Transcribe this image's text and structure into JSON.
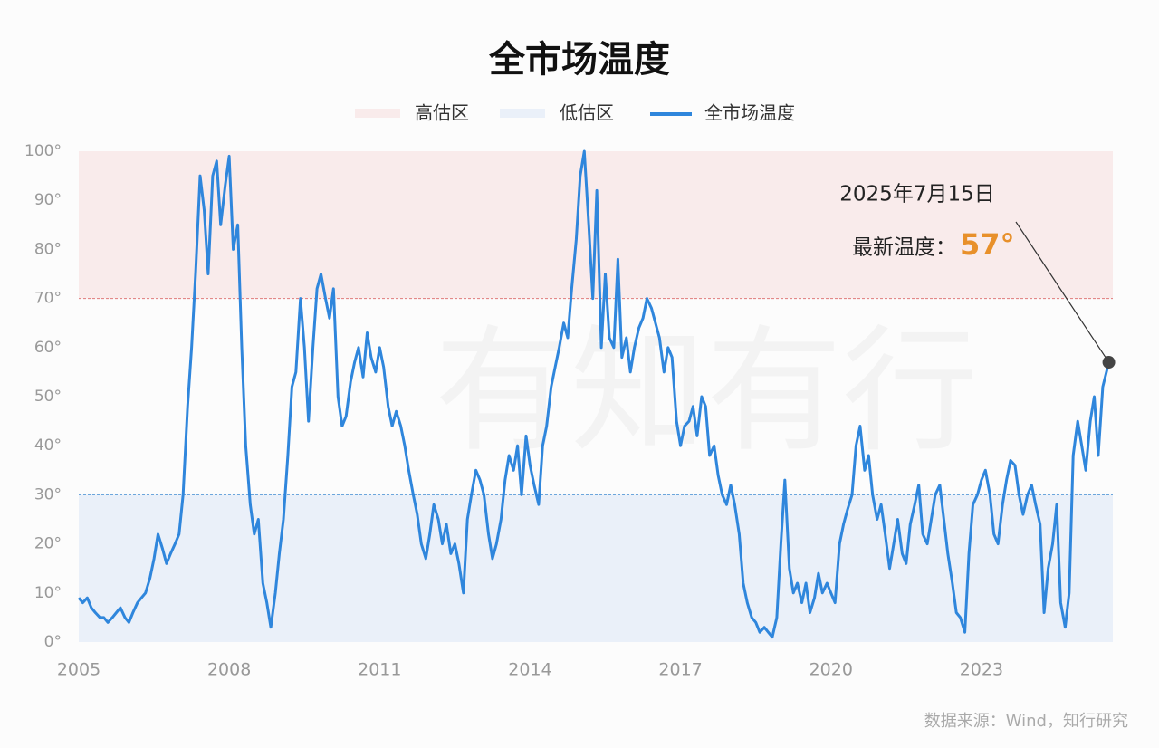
{
  "chart_data": {
    "type": "line",
    "title": "全市场温度",
    "watermark": "有知有行",
    "source": "数据来源：Wind，知行研究",
    "bands": [
      {
        "name": "高估区",
        "range": [
          70,
          100
        ],
        "color": "#f9ebeb",
        "line_color": "#e07a7a"
      },
      {
        "name": "低估区",
        "range": [
          0,
          30
        ],
        "color": "#eaf0f9",
        "line_color": "#5b9bd8"
      }
    ],
    "xlim": [
      2005,
      2025.62
    ],
    "xticks": [
      2005,
      2008,
      2011,
      2014,
      2017,
      2020,
      2023
    ],
    "ylim": [
      0,
      100
    ],
    "yticks": [
      {
        "value": 0,
        "label": "0°"
      },
      {
        "value": 10,
        "label": "10°"
      },
      {
        "value": 20,
        "label": "20°"
      },
      {
        "value": 30,
        "label": "30°"
      },
      {
        "value": 40,
        "label": "40°"
      },
      {
        "value": 50,
        "label": "50°"
      },
      {
        "value": 60,
        "label": "60°"
      },
      {
        "value": 70,
        "label": "70°"
      },
      {
        "value": 80,
        "label": "80°"
      },
      {
        "value": 90,
        "label": "90°"
      },
      {
        "value": 100,
        "label": "100°"
      }
    ],
    "grid": false,
    "annotation": {
      "text": "2025年7月15日",
      "label": "最新温度：",
      "value": 57,
      "value_label": "57°",
      "color": "#e8902a"
    },
    "x": [
      2005.0,
      2005.08,
      2005.17,
      2005.25,
      2005.33,
      2005.42,
      2005.5,
      2005.58,
      2005.67,
      2005.75,
      2005.83,
      2005.92,
      2006.0,
      2006.08,
      2006.17,
      2006.25,
      2006.33,
      2006.42,
      2006.5,
      2006.58,
      2006.67,
      2006.75,
      2006.83,
      2006.92,
      2007.0,
      2007.08,
      2007.17,
      2007.25,
      2007.33,
      2007.42,
      2007.5,
      2007.58,
      2007.67,
      2007.75,
      2007.83,
      2007.92,
      2008.0,
      2008.08,
      2008.17,
      2008.25,
      2008.33,
      2008.42,
      2008.5,
      2008.58,
      2008.67,
      2008.75,
      2008.83,
      2008.92,
      2009.0,
      2009.08,
      2009.17,
      2009.25,
      2009.33,
      2009.42,
      2009.5,
      2009.58,
      2009.67,
      2009.75,
      2009.83,
      2009.92,
      2010.0,
      2010.08,
      2010.17,
      2010.25,
      2010.33,
      2010.42,
      2010.5,
      2010.58,
      2010.67,
      2010.75,
      2010.83,
      2010.92,
      2011.0,
      2011.08,
      2011.17,
      2011.25,
      2011.33,
      2011.42,
      2011.5,
      2011.58,
      2011.67,
      2011.75,
      2011.83,
      2011.92,
      2012.0,
      2012.08,
      2012.17,
      2012.25,
      2012.33,
      2012.42,
      2012.5,
      2012.58,
      2012.67,
      2012.75,
      2012.83,
      2012.92,
      2013.0,
      2013.08,
      2013.17,
      2013.25,
      2013.33,
      2013.42,
      2013.5,
      2013.58,
      2013.67,
      2013.75,
      2013.83,
      2013.92,
      2014.0,
      2014.08,
      2014.17,
      2014.25,
      2014.33,
      2014.42,
      2014.5,
      2014.58,
      2014.67,
      2014.75,
      2014.83,
      2014.92,
      2015.0,
      2015.08,
      2015.17,
      2015.25,
      2015.33,
      2015.42,
      2015.5,
      2015.58,
      2015.67,
      2015.75,
      2015.83,
      2015.92,
      2016.0,
      2016.08,
      2016.17,
      2016.25,
      2016.33,
      2016.42,
      2016.5,
      2016.58,
      2016.67,
      2016.75,
      2016.83,
      2016.92,
      2017.0,
      2017.08,
      2017.17,
      2017.25,
      2017.33,
      2017.42,
      2017.5,
      2017.58,
      2017.67,
      2017.75,
      2017.83,
      2017.92,
      2018.0,
      2018.08,
      2018.17,
      2018.25,
      2018.33,
      2018.42,
      2018.5,
      2018.58,
      2018.67,
      2018.75,
      2018.83,
      2018.92,
      2019.0,
      2019.08,
      2019.17,
      2019.25,
      2019.33,
      2019.42,
      2019.5,
      2019.58,
      2019.67,
      2019.75,
      2019.83,
      2019.92,
      2020.0,
      2020.08,
      2020.17,
      2020.25,
      2020.33,
      2020.42,
      2020.5,
      2020.58,
      2020.67,
      2020.75,
      2020.83,
      2020.92,
      2021.0,
      2021.08,
      2021.17,
      2021.25,
      2021.33,
      2021.42,
      2021.5,
      2021.58,
      2021.67,
      2021.75,
      2021.83,
      2021.92,
      2022.0,
      2022.08,
      2022.17,
      2022.25,
      2022.33,
      2022.42,
      2022.5,
      2022.58,
      2022.67,
      2022.75,
      2022.83,
      2022.92,
      2023.0,
      2023.08,
      2023.17,
      2023.25,
      2023.33,
      2023.42,
      2023.5,
      2023.58,
      2023.67,
      2023.75,
      2023.83,
      2023.92,
      2024.0,
      2024.08,
      2024.17,
      2024.25,
      2024.33,
      2024.42,
      2024.5,
      2024.58,
      2024.67,
      2024.75,
      2024.83,
      2024.92,
      2025.0,
      2025.08,
      2025.17,
      2025.25,
      2025.33,
      2025.42,
      2025.54
    ],
    "series": [
      {
        "name": "全市场温度",
        "color": "#2f86dc",
        "values": [
          9,
          8,
          9,
          7,
          6,
          5,
          5,
          4,
          5,
          6,
          7,
          5,
          4,
          6,
          8,
          9,
          10,
          13,
          17,
          22,
          19,
          16,
          18,
          20,
          22,
          30,
          48,
          60,
          75,
          95,
          88,
          75,
          95,
          98,
          85,
          93,
          99,
          80,
          85,
          60,
          40,
          28,
          22,
          25,
          12,
          8,
          3,
          10,
          18,
          25,
          38,
          52,
          55,
          70,
          60,
          45,
          60,
          72,
          75,
          70,
          66,
          72,
          50,
          44,
          46,
          53,
          57,
          60,
          54,
          63,
          58,
          55,
          60,
          56,
          48,
          44,
          47,
          44,
          40,
          35,
          30,
          26,
          20,
          17,
          22,
          28,
          25,
          20,
          24,
          18,
          20,
          16,
          10,
          25,
          30,
          35,
          33,
          30,
          22,
          17,
          20,
          25,
          33,
          38,
          35,
          40,
          30,
          42,
          36,
          32,
          28,
          40,
          44,
          52,
          56,
          60,
          65,
          62,
          72,
          82,
          95,
          100,
          85,
          70,
          92,
          60,
          75,
          62,
          60,
          78,
          58,
          62,
          55,
          60,
          64,
          66,
          70,
          68,
          65,
          62,
          55,
          60,
          58,
          45,
          40,
          44,
          45,
          48,
          42,
          50,
          48,
          38,
          40,
          34,
          30,
          28,
          32,
          28,
          22,
          12,
          8,
          5,
          4,
          2,
          3,
          2,
          1,
          5,
          20,
          33,
          15,
          10,
          12,
          8,
          12,
          6,
          9,
          14,
          10,
          12,
          10,
          8,
          20,
          24,
          27,
          30,
          40,
          44,
          35,
          38,
          30,
          25,
          28,
          22,
          15,
          20,
          25,
          18,
          16,
          24,
          28,
          32,
          22,
          20,
          25,
          30,
          32,
          25,
          18,
          12,
          6,
          5,
          2,
          18,
          28,
          30,
          33,
          35,
          30,
          22,
          20,
          28,
          33,
          37,
          36,
          30,
          26,
          30,
          32,
          28,
          24,
          6,
          15,
          20,
          28,
          8,
          3,
          10,
          38,
          45,
          40,
          35,
          45,
          50,
          38,
          52,
          57
        ]
      }
    ]
  }
}
